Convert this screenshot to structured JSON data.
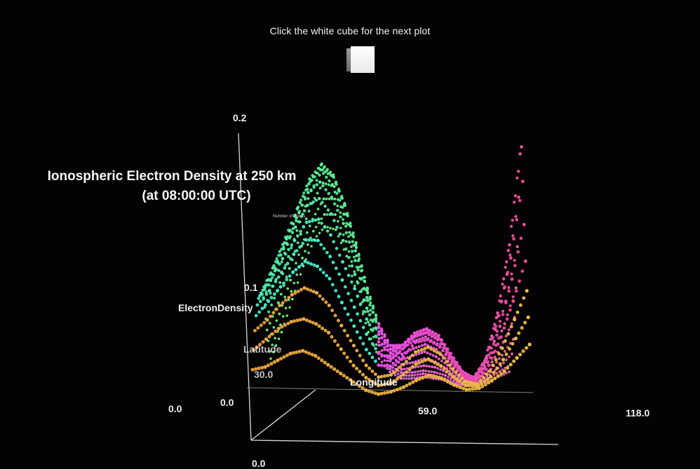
{
  "instruction": "Click the white cube for the next plot",
  "chart_data": {
    "type": "scatter",
    "title": "Ionospheric Electron Density at 250 km",
    "subtitle": "(at 08:00:00 UTC)",
    "ylabel": "ElectronDensity",
    "xlabel": "Longitude",
    "zlabel": "Latitude",
    "points_label": "Number of Points",
    "y_ticks": [
      "0.0",
      "0.1",
      "0.2"
    ],
    "x_ticks": [
      "0.0",
      "59.0",
      "118.0"
    ],
    "z_ticks": [
      "0.0",
      "30.0"
    ],
    "x_origin_label": "0.0",
    "xlim": [
      0,
      118
    ],
    "ylim": [
      0,
      0.2
    ],
    "zlim": [
      0,
      60
    ],
    "profiles": [
      {
        "lat": 0,
        "values": [
          0.01,
          0.012,
          0.016,
          0.02,
          0.022,
          0.02,
          0.016,
          0.012,
          0.008,
          0.004,
          0.002,
          0.003,
          0.005,
          0.008,
          0.01,
          0.008,
          0.004,
          0.001,
          0.001,
          0.004,
          0.008,
          0.014,
          0.02
        ]
      },
      {
        "lat": 4,
        "values": [
          0.02,
          0.026,
          0.032,
          0.036,
          0.038,
          0.036,
          0.032,
          0.024,
          0.016,
          0.01,
          0.006,
          0.007,
          0.011,
          0.016,
          0.018,
          0.014,
          0.008,
          0.003,
          0.002,
          0.006,
          0.014,
          0.024,
          0.034
        ]
      },
      {
        "lat": 8,
        "values": [
          0.03,
          0.036,
          0.044,
          0.05,
          0.054,
          0.052,
          0.046,
          0.036,
          0.026,
          0.016,
          0.01,
          0.011,
          0.016,
          0.022,
          0.024,
          0.02,
          0.012,
          0.005,
          0.003,
          0.009,
          0.02,
          0.034,
          0.048
        ]
      },
      {
        "lat": 12,
        "values": [
          0.038,
          0.046,
          0.054,
          0.062,
          0.068,
          0.066,
          0.06,
          0.048,
          0.036,
          0.024,
          0.016,
          0.015,
          0.02,
          0.027,
          0.028,
          0.024,
          0.015,
          0.007,
          0.004,
          0.012,
          0.026,
          0.044,
          0.064
        ]
      },
      {
        "lat": 16,
        "values": [
          0.044,
          0.052,
          0.062,
          0.072,
          0.08,
          0.08,
          0.072,
          0.06,
          0.046,
          0.032,
          0.022,
          0.019,
          0.024,
          0.031,
          0.032,
          0.028,
          0.018,
          0.009,
          0.005,
          0.014,
          0.032,
          0.056,
          0.084
        ]
      },
      {
        "lat": 20,
        "values": [
          0.048,
          0.058,
          0.07,
          0.08,
          0.09,
          0.092,
          0.084,
          0.07,
          0.056,
          0.04,
          0.028,
          0.022,
          0.026,
          0.032,
          0.034,
          0.03,
          0.02,
          0.01,
          0.006,
          0.016,
          0.038,
          0.068,
          0.108
        ]
      },
      {
        "lat": 24,
        "values": [
          0.05,
          0.062,
          0.076,
          0.088,
          0.1,
          0.104,
          0.096,
          0.082,
          0.064,
          0.046,
          0.032,
          0.024,
          0.026,
          0.032,
          0.034,
          0.03,
          0.02,
          0.01,
          0.006,
          0.016,
          0.04,
          0.076,
          0.128
        ]
      },
      {
        "lat": 28,
        "values": [
          0.052,
          0.066,
          0.08,
          0.094,
          0.108,
          0.114,
          0.106,
          0.092,
          0.072,
          0.052,
          0.036,
          0.026,
          0.026,
          0.03,
          0.032,
          0.028,
          0.019,
          0.01,
          0.006,
          0.015,
          0.038,
          0.074,
          0.126
        ]
      },
      {
        "lat": 32,
        "values": [
          0.052,
          0.068,
          0.084,
          0.1,
          0.114,
          0.122,
          0.114,
          0.098,
          0.078,
          0.056,
          0.038,
          0.026,
          0.024,
          0.028,
          0.03,
          0.026,
          0.018,
          0.009,
          0.005,
          0.013,
          0.032,
          0.062,
          0.104
        ]
      },
      {
        "lat": 36,
        "values": [
          0.05,
          0.066,
          0.084,
          0.102,
          0.118,
          0.126,
          0.12,
          0.104,
          0.082,
          0.058,
          0.038,
          0.024,
          0.021,
          0.024,
          0.026,
          0.023,
          0.016,
          0.008,
          0.005,
          0.011,
          0.026,
          0.048,
          0.078
        ]
      },
      {
        "lat": 40,
        "values": [
          0.046,
          0.062,
          0.082,
          0.1,
          0.118,
          0.128,
          0.122,
          0.106,
          0.084,
          0.058,
          0.036,
          0.022,
          0.018,
          0.02,
          0.022,
          0.019,
          0.014,
          0.007,
          0.004,
          0.009,
          0.02,
          0.036,
          0.056
        ]
      },
      {
        "lat": 44,
        "values": [
          0.04,
          0.056,
          0.076,
          0.096,
          0.114,
          0.126,
          0.122,
          0.106,
          0.082,
          0.056,
          0.034,
          0.02,
          0.015,
          0.016,
          0.018,
          0.016,
          0.012,
          0.006,
          0.004,
          0.007,
          0.015,
          0.026,
          0.04
        ]
      },
      {
        "lat": 48,
        "values": [
          0.034,
          0.05,
          0.07,
          0.09,
          0.108,
          0.12,
          0.118,
          0.102,
          0.078,
          0.052,
          0.03,
          0.017,
          0.012,
          0.013,
          0.014,
          0.013,
          0.01,
          0.005,
          0.003,
          0.006,
          0.011,
          0.019,
          0.028
        ]
      },
      {
        "lat": 52,
        "values": [
          0.028,
          0.044,
          0.064,
          0.084,
          0.1,
          0.112,
          0.112,
          0.096,
          0.072,
          0.046,
          0.026,
          0.014,
          0.01,
          0.01,
          0.011,
          0.01,
          0.008,
          0.004,
          0.003,
          0.004,
          0.008,
          0.013,
          0.02
        ]
      },
      {
        "lat": 56,
        "values": [
          0.022,
          0.038,
          0.058,
          0.078,
          0.094,
          0.104,
          0.104,
          0.088,
          0.064,
          0.04,
          0.022,
          0.012,
          0.008,
          0.008,
          0.009,
          0.008,
          0.006,
          0.003,
          0.002,
          0.003,
          0.006,
          0.01,
          0.014
        ]
      },
      {
        "lat": 60,
        "values": [
          0.018,
          0.034,
          0.054,
          0.074,
          0.09,
          0.098,
          0.096,
          0.08,
          0.056,
          0.034,
          0.018,
          0.01,
          0.006,
          0.006,
          0.007,
          0.006,
          0.005,
          0.002,
          0.002,
          0.002,
          0.004,
          0.007,
          0.01
        ]
      }
    ]
  }
}
